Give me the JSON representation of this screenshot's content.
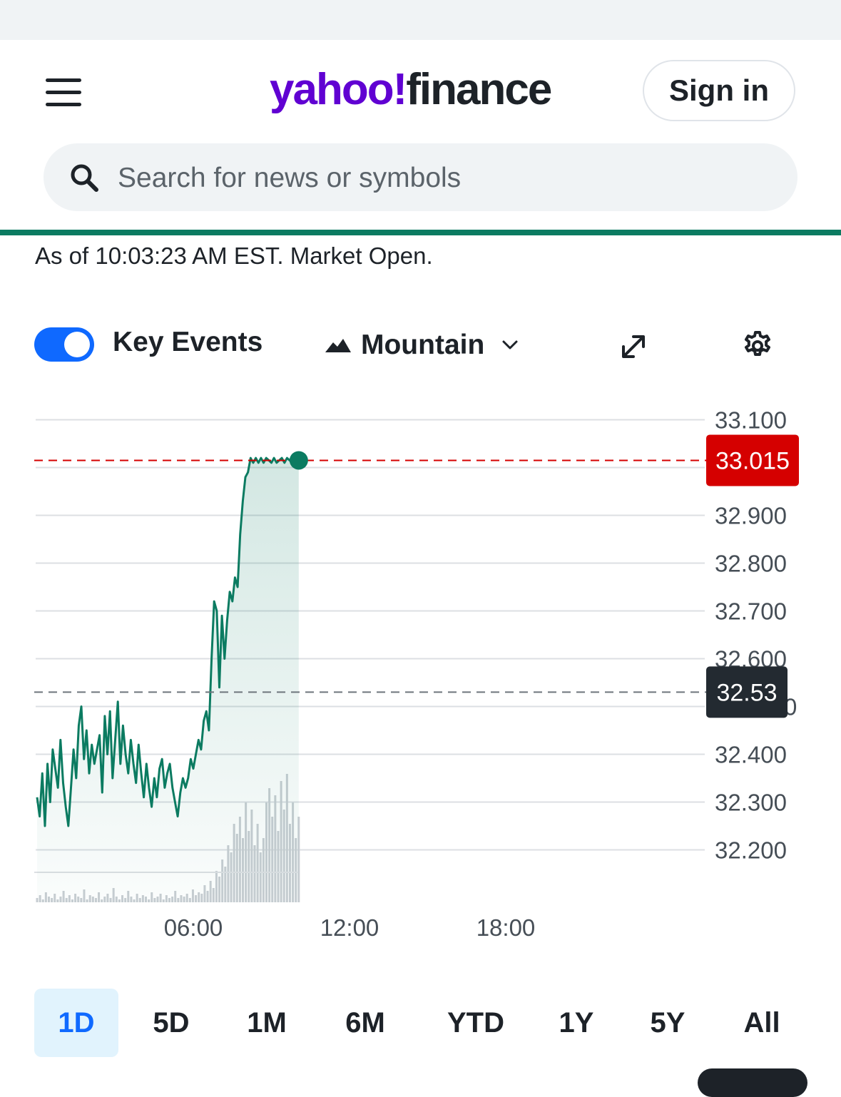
{
  "header": {
    "logo_yahoo": "yahoo",
    "logo_bang": "!",
    "logo_finance": "finance",
    "signin_label": "Sign in",
    "search_placeholder": "Search for news or symbols"
  },
  "status": {
    "as_of": "As of 10:03:23 AM EST. Market Open."
  },
  "controls": {
    "key_events_label": "Key Events",
    "key_events_on": true,
    "chart_type_label": "Mountain"
  },
  "icons": {
    "menu": "hamburger-menu-icon",
    "search": "search-icon",
    "mountain": "mountain-chart-icon",
    "dropdown": "chevron-down-icon",
    "expand": "expand-icon",
    "settings": "gear-icon"
  },
  "colors": {
    "brand_purple": "#6001d2",
    "line_green": "#0b7b61",
    "current_price_red": "#d50000",
    "prev_close_dark": "#232a31",
    "toggle_blue": "#0f69ff",
    "active_range_bg": "#e1f3fd"
  },
  "chart_data": {
    "type": "area",
    "ylim": [
      32.15,
      33.15
    ],
    "y_ticks": [
      "33.100",
      "32.900",
      "32.800",
      "32.700",
      "32.600",
      "32.400",
      "32.300",
      "32.200"
    ],
    "y_tick_values": [
      33.1,
      32.9,
      32.8,
      32.7,
      32.6,
      32.4,
      32.3,
      32.2
    ],
    "hidden_tick_fragment": "0",
    "x_ticks": [
      "06:00",
      "12:00",
      "18:00"
    ],
    "x_tick_hours": [
      6,
      12,
      18
    ],
    "xlim_hours": [
      0,
      24
    ],
    "current_price": 33.015,
    "current_price_label": "33.015",
    "previous_close": 32.53,
    "previous_close_label": "32.53",
    "series": [
      {
        "hours": [
          0.0,
          0.1,
          0.2,
          0.3,
          0.4,
          0.5,
          0.6,
          0.8,
          0.9,
          1.0,
          1.1,
          1.2,
          1.3,
          1.4,
          1.5,
          1.6,
          1.7,
          1.8,
          1.9,
          2.0,
          2.1,
          2.2,
          2.4,
          2.5,
          2.6,
          2.7,
          2.8,
          2.9,
          3.0,
          3.1,
          3.2,
          3.3,
          3.4,
          3.5,
          3.6,
          3.7,
          3.8,
          3.9,
          4.0,
          4.1,
          4.2,
          4.3,
          4.4,
          4.5,
          4.6,
          4.7,
          4.8,
          4.9,
          5.0,
          5.1,
          5.2,
          5.3,
          5.4,
          5.5,
          5.6,
          5.7,
          5.8,
          5.9,
          6.0,
          6.1,
          6.2,
          6.3,
          6.4,
          6.5,
          6.6,
          6.7,
          6.8,
          6.9,
          7.0,
          7.1,
          7.2,
          7.3,
          7.4,
          7.5,
          7.6,
          7.7,
          7.8,
          7.9,
          8.0,
          8.1,
          8.2,
          8.3,
          8.4,
          8.5,
          8.6,
          8.7,
          8.8,
          8.9,
          9.0,
          9.1,
          9.2,
          9.3,
          9.4,
          9.5,
          9.6,
          9.7,
          9.8,
          9.9,
          10.0,
          10.05
        ],
        "values": [
          32.31,
          32.27,
          32.36,
          32.25,
          32.38,
          32.3,
          32.41,
          32.33,
          32.43,
          32.34,
          32.29,
          32.25,
          32.33,
          32.41,
          32.35,
          32.46,
          32.5,
          32.39,
          32.45,
          32.36,
          32.42,
          32.38,
          32.44,
          32.32,
          32.48,
          32.4,
          32.49,
          32.35,
          32.43,
          32.51,
          32.38,
          32.46,
          32.4,
          32.36,
          32.43,
          32.38,
          32.34,
          32.42,
          32.36,
          32.31,
          32.38,
          32.33,
          32.29,
          32.35,
          32.31,
          32.37,
          32.39,
          32.33,
          32.36,
          32.38,
          32.33,
          32.3,
          32.27,
          32.32,
          32.35,
          32.33,
          32.35,
          32.39,
          32.37,
          32.4,
          32.43,
          32.41,
          32.47,
          32.49,
          32.45,
          32.6,
          32.72,
          32.7,
          32.54,
          32.69,
          32.6,
          32.68,
          32.74,
          32.72,
          32.77,
          32.75,
          32.86,
          32.93,
          32.98,
          32.99,
          33.02,
          33.01,
          33.02,
          33.01,
          33.02,
          33.01,
          33.02,
          33.015,
          33.01,
          33.02,
          33.01,
          33.015,
          33.02,
          33.01,
          33.02,
          33.015,
          33.01,
          33.02,
          33.015,
          33.015
        ]
      }
    ],
    "volume": [
      3,
      5,
      2,
      7,
      4,
      3,
      6,
      2,
      4,
      8,
      3,
      5,
      2,
      6,
      4,
      3,
      9,
      2,
      5,
      4,
      3,
      7,
      2,
      4,
      6,
      3,
      10,
      4,
      2,
      5,
      3,
      8,
      4,
      2,
      6,
      3,
      5,
      4,
      2,
      7,
      3,
      4,
      6,
      2,
      5,
      3,
      4,
      8,
      3,
      5,
      4,
      6,
      3,
      9,
      5,
      7,
      6,
      12,
      8,
      15,
      10,
      22,
      18,
      30,
      25,
      40,
      35,
      55,
      48,
      60,
      45,
      70,
      50,
      65,
      40,
      55,
      35,
      45,
      70,
      80,
      60,
      75,
      50,
      85,
      65,
      90,
      55,
      70,
      45,
      60
    ],
    "grid": true
  }
}
